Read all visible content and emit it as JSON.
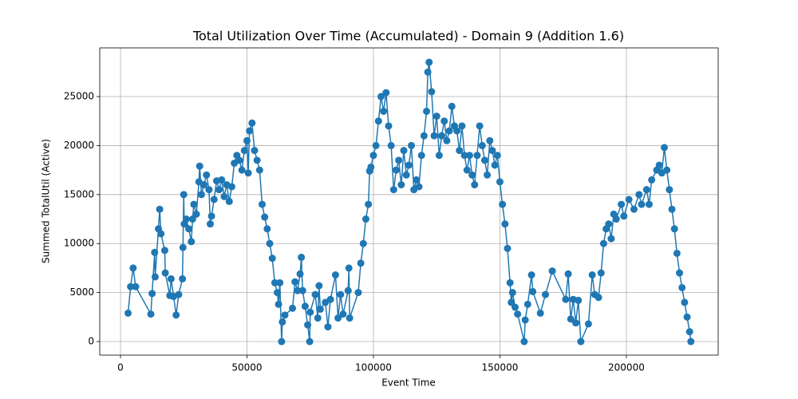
{
  "chart_data": {
    "type": "line",
    "title": "Total Utilization Over Time (Accumulated) - Domain 9 (Addition 1.6)",
    "xlabel": "Event Time",
    "ylabel": "Summed TotalUtil (Active)",
    "x": [
      3000,
      4000,
      5000,
      6000,
      12000,
      12500,
      13500,
      13700,
      15000,
      15500,
      16000,
      17500,
      17700,
      19500,
      20000,
      21000,
      22000,
      23000,
      24500,
      24700,
      25000,
      25200,
      26000,
      27000,
      28000,
      28500,
      29000,
      30000,
      31000,
      31300,
      32000,
      33000,
      34000,
      35000,
      35500,
      36000,
      37000,
      38000,
      39000,
      40000,
      41000,
      42000,
      43000,
      44000,
      45000,
      46000,
      47000,
      48000,
      49000,
      50000,
      50500,
      51000,
      52000,
      53000,
      54000,
      55000,
      56000,
      57000,
      58000,
      59000,
      60000,
      61000,
      62000,
      62500,
      63000,
      63700,
      64000,
      65000,
      68000,
      69000,
      70000,
      71000,
      71500,
      72000,
      73000,
      74000,
      74800,
      75000,
      77000,
      78000,
      78500,
      79000,
      81000,
      82000,
      83000,
      85000,
      86000,
      87000,
      88000,
      90000,
      90300,
      90600,
      94000,
      95000,
      96000,
      97000,
      98000,
      98500,
      99000,
      100000,
      101000,
      102000,
      103000,
      104000,
      105000,
      106000,
      107000,
      108000,
      109000,
      110000,
      111000,
      112000,
      113000,
      114000,
      115000,
      116000,
      117000,
      118000,
      119000,
      120000,
      121000,
      121500,
      122000,
      123000,
      124000,
      125000,
      126000,
      127000,
      128000,
      129000,
      130000,
      131000,
      132000,
      133000,
      134000,
      135000,
      136000,
      137000,
      138000,
      139000,
      140000,
      141000,
      142000,
      143000,
      144000,
      145000,
      146000,
      147000,
      148000,
      149000,
      150000,
      151000,
      152000,
      153000,
      154000,
      154500,
      155000,
      156000,
      157000,
      159600,
      160000,
      161000,
      162500,
      163000,
      166000,
      168000,
      170700,
      176000,
      177000,
      178000,
      179000,
      180000,
      181000,
      182000,
      185000,
      186500,
      187500,
      189000,
      190000,
      191000,
      192000,
      193000,
      194000,
      195000,
      196000,
      198000,
      199000,
      201000,
      203000,
      205000,
      206000,
      208000,
      209000,
      210000,
      212000,
      213000,
      214000,
      215000,
      216000,
      217000,
      218000,
      219000,
      220000,
      221000,
      222000,
      223000,
      224000,
      225000,
      225500
    ],
    "series": [
      {
        "name": "Summed TotalUtil (Active)",
        "color": "#1f77b4",
        "values": [
          2900,
          5600,
          7500,
          5600,
          2800,
          4900,
          9100,
          6600,
          11500,
          13500,
          11000,
          9300,
          7000,
          4700,
          6400,
          4600,
          2700,
          4800,
          6400,
          9600,
          15000,
          12000,
          12500,
          11500,
          10200,
          12500,
          14000,
          13000,
          16300,
          17900,
          15000,
          16000,
          17000,
          15500,
          12000,
          12800,
          14500,
          16400,
          15500,
          16500,
          14800,
          16000,
          14300,
          15800,
          18200,
          19000,
          18500,
          17500,
          19500,
          20500,
          17200,
          21500,
          22300,
          19500,
          18500,
          17500,
          14000,
          12700,
          11500,
          10000,
          8500,
          6000,
          5000,
          3800,
          6000,
          0,
          2000,
          2700,
          3400,
          6100,
          5200,
          6900,
          8600,
          5200,
          3600,
          1700,
          0,
          3000,
          4800,
          2400,
          5700,
          3300,
          4000,
          1500,
          4300,
          6800,
          2400,
          4800,
          2800,
          5200,
          7500,
          2400,
          5000,
          8000,
          10000,
          12500,
          14000,
          17400,
          17800,
          19000,
          20000,
          22500,
          25000,
          23500,
          25400,
          22000,
          20000,
          15500,
          17500,
          18500,
          16000,
          19500,
          17000,
          18000,
          20000,
          15500,
          16500,
          15800,
          19000,
          21000,
          23500,
          27500,
          28500,
          25500,
          21000,
          23000,
          19000,
          21000,
          22500,
          20500,
          21500,
          24000,
          22000,
          21500,
          19500,
          22000,
          19000,
          17500,
          19000,
          17000,
          16000,
          19000,
          22000,
          20000,
          18500,
          17000,
          20500,
          19500,
          18000,
          19000,
          16300,
          14000,
          12000,
          9500,
          6000,
          4000,
          5000,
          3500,
          2800,
          0,
          2200,
          3800,
          6800,
          5100,
          2900,
          4800,
          7200,
          4300,
          6900,
          2300,
          4300,
          1900,
          4200,
          0,
          1800,
          6800,
          4800,
          4500,
          7000,
          10000,
          11500,
          12000,
          10500,
          13000,
          12500,
          14000,
          12800,
          14500,
          13500,
          15000,
          14000,
          15500,
          14000,
          16500,
          17500,
          18000,
          17200,
          19800,
          17500,
          15500,
          13500,
          11500,
          9000,
          7000,
          5500,
          4000,
          2500,
          1000,
          0
        ]
      }
    ],
    "xlim": [
      -8200,
      236300
    ],
    "ylim": [
      -1384,
      29970
    ],
    "xticks": [
      0,
      50000,
      100000,
      150000,
      200000
    ],
    "yticks": [
      0,
      5000,
      10000,
      15000,
      20000,
      25000
    ],
    "grid": true,
    "marker": "o"
  }
}
